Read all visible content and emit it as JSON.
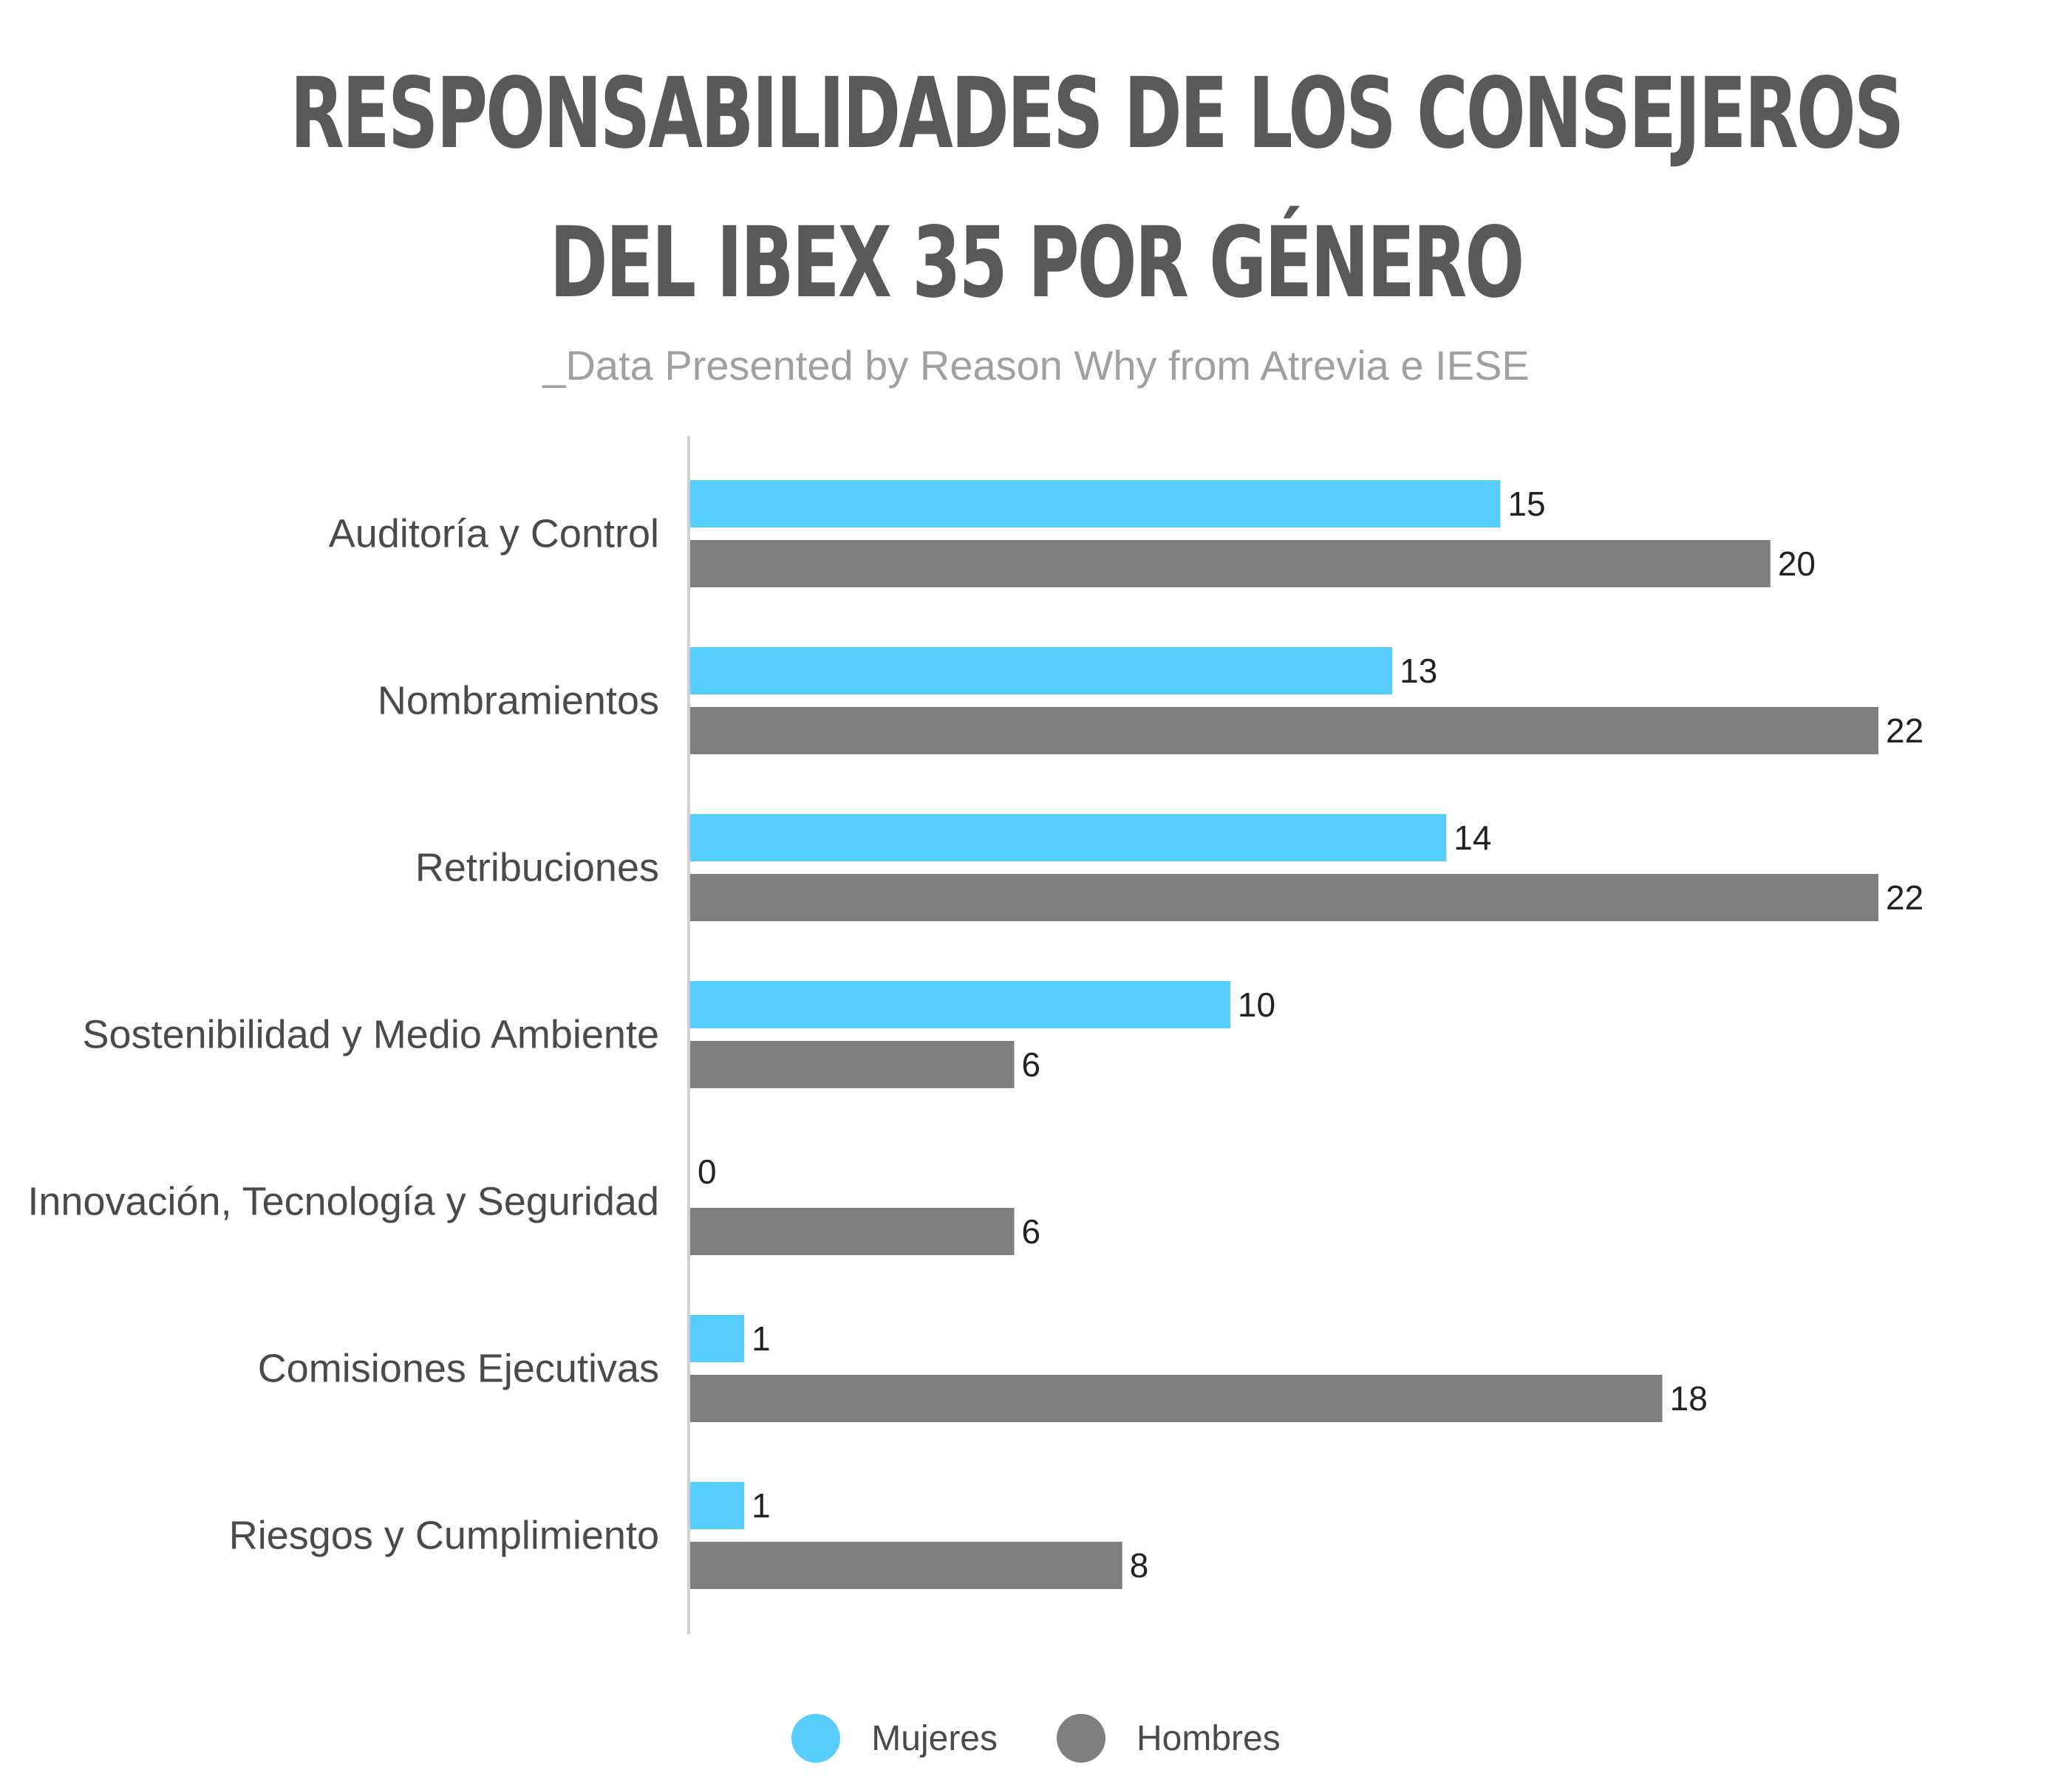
{
  "header": {
    "title_line1": "RESPONSABILIDADES DE LOS CONSEJEROS",
    "title_line2": "DEL IBEX 35 POR GÉNERO",
    "subtitle": "_Data Presented by Reason Why from Atrevia e IESE"
  },
  "chart_data": {
    "type": "bar",
    "orientation": "horizontal",
    "title": "RESPONSABILIDADES DE LOS CONSEJEROS DEL IBEX 35 POR GÉNERO",
    "subtitle": "_Data Presented by Reason Why from Atrevia e IESE",
    "categories": [
      "Auditoría y Control",
      "Nombramientos",
      "Retribuciones",
      "Sostenibilidad y Medio Ambiente",
      "Innovación, Tecnología y Seguridad",
      "Comisiones Ejecutivas",
      "Riesgos y Cumplimiento"
    ],
    "series": [
      {
        "name": "Mujeres",
        "color": "#57cdfb",
        "values": [
          15,
          13,
          14,
          10,
          0,
          1,
          1
        ]
      },
      {
        "name": "Hombres",
        "color": "#7f7f7f",
        "values": [
          20,
          22,
          22,
          6,
          6,
          18,
          8
        ]
      }
    ],
    "xlim": [
      0,
      22
    ],
    "grid": false,
    "data_labels": true,
    "legend_position": "bottom"
  },
  "legend": {
    "items": [
      {
        "label": "Mujeres",
        "color": "#57cdfb"
      },
      {
        "label": "Hombres",
        "color": "#7f7f7f"
      }
    ]
  }
}
